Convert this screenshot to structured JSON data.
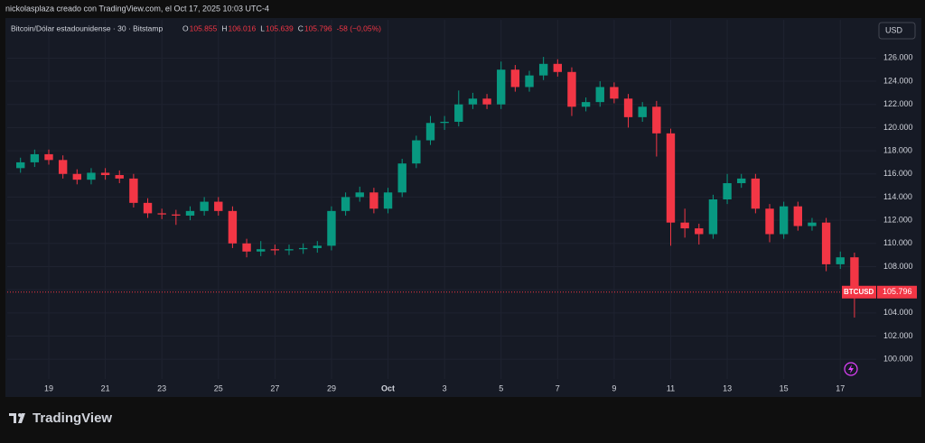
{
  "header": {
    "credit": "nickolasplaza creado con TradingView.com, el Oct 17, 2025 10:03 UTC-4",
    "brand": "TradingView"
  },
  "chart_data": {
    "type": "candlestick",
    "symbol": "Bitcoin/Dólar estadounidense · 30 · Bitstamp",
    "ohlc_header": [
      {
        "key": "O",
        "value": "105.855"
      },
      {
        "key": "H",
        "value": "106.016"
      },
      {
        "key": "L",
        "value": "105.639"
      },
      {
        "key": "C",
        "value": "105.796"
      }
    ],
    "change": "-58 (−0,05%)",
    "currency": "USD",
    "ticker": "BTCUSD",
    "last_price": {
      "value": 105796,
      "label": "105.796"
    },
    "up_color": "#089981",
    "down_color": "#f23645",
    "x": [
      0,
      0.5,
      1,
      1.5,
      2,
      2.5,
      3,
      3.5,
      4,
      4.5,
      5,
      5.5,
      6,
      6.5,
      7,
      7.5,
      8,
      8.5,
      9,
      9.5,
      10,
      10.5,
      11,
      11.5,
      12,
      12.5,
      13,
      13.5,
      14,
      14.5,
      15,
      15.5,
      16,
      16.5,
      17,
      17.5,
      18,
      18.5,
      19,
      19.5,
      20,
      20.5,
      21,
      21.5,
      22,
      22.5,
      23,
      23.5,
      24,
      24.5,
      25,
      25.5,
      26,
      26.5,
      27,
      27.5,
      28,
      28.5,
      29,
      29.5
    ],
    "open": [
      116500,
      117000,
      117700,
      117200,
      116000,
      115500,
      116100,
      115900,
      115600,
      113500,
      112600,
      112500,
      112400,
      112800,
      113600,
      112800,
      110000,
      109300,
      109500,
      109400,
      109500,
      109600,
      109800,
      112800,
      114000,
      114400,
      113000,
      114400,
      116900,
      118900,
      120400,
      120500,
      122000,
      122500,
      122000,
      125000,
      123500,
      124500,
      125500,
      124800,
      121800,
      122200,
      123500,
      122500,
      120900,
      121800,
      119500,
      111800,
      111300,
      110800,
      113800,
      115200,
      115600,
      113000,
      110800,
      113200,
      111500,
      111800,
      108200,
      108800
    ],
    "high": [
      117400,
      118100,
      118100,
      117600,
      116400,
      116500,
      116500,
      116300,
      116000,
      113900,
      113000,
      112900,
      113200,
      114000,
      114000,
      113200,
      110400,
      110200,
      109900,
      109900,
      110000,
      110200,
      113200,
      114400,
      114900,
      114800,
      114800,
      117300,
      119300,
      121000,
      121000,
      123200,
      123000,
      122900,
      125700,
      125400,
      124900,
      126100,
      125900,
      125200,
      122600,
      124000,
      123900,
      122900,
      122200,
      122300,
      119900,
      113000,
      111700,
      114200,
      116000,
      116000,
      116000,
      113400,
      113600,
      113600,
      112200,
      112200,
      109300,
      109200
    ],
    "low": [
      116100,
      116600,
      116800,
      115600,
      115100,
      115100,
      115500,
      115200,
      113100,
      112200,
      112100,
      111600,
      112000,
      112400,
      112400,
      109600,
      108800,
      108900,
      109000,
      109000,
      109100,
      109200,
      109400,
      112400,
      113600,
      112600,
      112600,
      114000,
      116500,
      118500,
      119800,
      120100,
      121600,
      121600,
      121600,
      123100,
      123100,
      124100,
      124400,
      121000,
      121400,
      121800,
      122100,
      120000,
      120500,
      117500,
      109800,
      110500,
      109900,
      110400,
      113400,
      114800,
      112600,
      110100,
      110400,
      111100,
      111100,
      107600,
      107800,
      103600
    ],
    "close": [
      117000,
      117700,
      117200,
      116000,
      115500,
      116100,
      115900,
      115600,
      113500,
      112600,
      112500,
      112400,
      112800,
      113600,
      112800,
      110000,
      109300,
      109500,
      109400,
      109500,
      109600,
      109800,
      112800,
      114000,
      114400,
      113000,
      114400,
      116900,
      118900,
      120400,
      120500,
      122000,
      122500,
      122000,
      125000,
      123500,
      124500,
      125500,
      124800,
      121800,
      122200,
      123500,
      122500,
      120900,
      121800,
      119500,
      111800,
      111300,
      110800,
      113800,
      115200,
      115600,
      113000,
      110800,
      113200,
      111500,
      111800,
      108200,
      108800,
      105796
    ],
    "xlim": [
      -0.47,
      30.27
    ],
    "xticks": [
      {
        "value": 1,
        "label": "19"
      },
      {
        "value": 3,
        "label": "21"
      },
      {
        "value": 5,
        "label": "23"
      },
      {
        "value": 7,
        "label": "25"
      },
      {
        "value": 9,
        "label": "27"
      },
      {
        "value": 11,
        "label": "29"
      },
      {
        "value": 13,
        "label": "Oct"
      },
      {
        "value": 15,
        "label": "3"
      },
      {
        "value": 17,
        "label": "5"
      },
      {
        "value": 19,
        "label": "7"
      },
      {
        "value": 21,
        "label": "9"
      },
      {
        "value": 23,
        "label": "11"
      },
      {
        "value": 25,
        "label": "13"
      },
      {
        "value": 27,
        "label": "15"
      },
      {
        "value": 29,
        "label": "17"
      }
    ],
    "ylim": [
      98300,
      129300
    ],
    "yticks": [
      {
        "value": 100000,
        "label": "100.000"
      },
      {
        "value": 102000,
        "label": "102.000"
      },
      {
        "value": 104000,
        "label": "104.000"
      },
      {
        "value": 106000,
        "label": "106.000"
      },
      {
        "value": 108000,
        "label": "108.000"
      },
      {
        "value": 110000,
        "label": "110.000"
      },
      {
        "value": 112000,
        "label": "112.000"
      },
      {
        "value": 114000,
        "label": "114.000"
      },
      {
        "value": 116000,
        "label": "116.000"
      },
      {
        "value": 118000,
        "label": "118.000"
      },
      {
        "value": 120000,
        "label": "120.000"
      },
      {
        "value": 122000,
        "label": "122.000"
      },
      {
        "value": 124000,
        "label": "124.000"
      },
      {
        "value": 126000,
        "label": "126.000"
      }
    ],
    "grid": true
  }
}
